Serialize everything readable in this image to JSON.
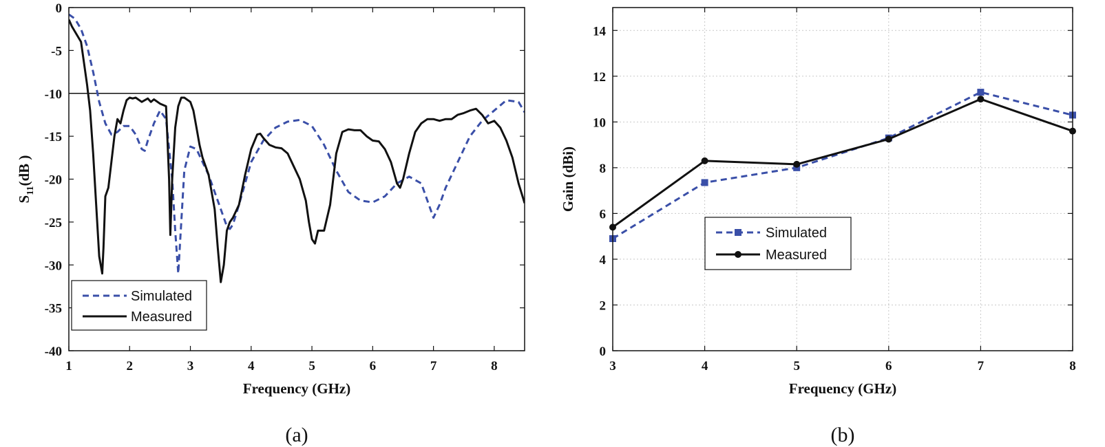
{
  "chart_data": [
    {
      "type": "line",
      "caption": "(a)",
      "xlabel": "Frequency (GHz)",
      "ylabel_main": "S",
      "ylabel_sub": "11",
      "ylabel_rest": "(dB )",
      "xlim": [
        1,
        8.5
      ],
      "ylim": [
        -40,
        0
      ],
      "xticks": [
        1,
        2,
        3,
        4,
        5,
        6,
        7,
        8
      ],
      "yticks": [
        0,
        -5,
        -10,
        -15,
        -20,
        -25,
        -30,
        -35,
        -40
      ],
      "grid": false,
      "reference_line": -10,
      "legend_position": "bottom-left",
      "series": [
        {
          "name": "Simulated",
          "style": "dashed",
          "color": "#3a4fa8",
          "x": [
            1.0,
            1.1,
            1.2,
            1.3,
            1.4,
            1.5,
            1.6,
            1.7,
            1.8,
            1.9,
            2.0,
            2.1,
            2.2,
            2.25,
            2.3,
            2.4,
            2.5,
            2.6,
            2.7,
            2.75,
            2.8,
            2.85,
            2.9,
            3.0,
            3.1,
            3.2,
            3.3,
            3.4,
            3.5,
            3.6,
            3.65,
            3.7,
            3.8,
            3.9,
            4.0,
            4.2,
            4.4,
            4.6,
            4.8,
            5.0,
            5.2,
            5.4,
            5.6,
            5.8,
            6.0,
            6.2,
            6.4,
            6.6,
            6.8,
            6.9,
            7.0,
            7.1,
            7.2,
            7.4,
            7.6,
            7.8,
            8.0,
            8.2,
            8.4,
            8.5
          ],
          "y": [
            -0.8,
            -1.3,
            -2.5,
            -4.5,
            -7.5,
            -11.0,
            -13.5,
            -14.8,
            -14.5,
            -13.8,
            -13.8,
            -14.8,
            -16.5,
            -16.7,
            -15.5,
            -13.5,
            -12.0,
            -13.0,
            -20.0,
            -26.0,
            -31.0,
            -25.0,
            -19.0,
            -16.2,
            -16.5,
            -18.0,
            -19.5,
            -21.5,
            -23.5,
            -25.5,
            -25.8,
            -25.3,
            -23.0,
            -20.5,
            -18.0,
            -15.5,
            -14.0,
            -13.3,
            -13.1,
            -13.8,
            -16.0,
            -19.0,
            -21.5,
            -22.5,
            -22.7,
            -22.0,
            -20.5,
            -19.7,
            -20.5,
            -22.5,
            -24.5,
            -23.0,
            -21.0,
            -18.0,
            -15.0,
            -13.2,
            -12.0,
            -10.8,
            -11.0,
            -12.2
          ]
        },
        {
          "name": "Measured",
          "style": "solid",
          "color": "#111111",
          "x": [
            1.0,
            1.05,
            1.1,
            1.2,
            1.25,
            1.3,
            1.35,
            1.4,
            1.45,
            1.5,
            1.55,
            1.57,
            1.6,
            1.65,
            1.7,
            1.75,
            1.8,
            1.85,
            1.9,
            1.95,
            2.0,
            2.05,
            2.1,
            2.2,
            2.3,
            2.35,
            2.4,
            2.5,
            2.6,
            2.65,
            2.67,
            2.7,
            2.75,
            2.8,
            2.85,
            2.9,
            3.0,
            3.05,
            3.1,
            3.15,
            3.2,
            3.3,
            3.4,
            3.45,
            3.5,
            3.55,
            3.6,
            3.65,
            3.7,
            3.8,
            3.9,
            4.0,
            4.1,
            4.15,
            4.2,
            4.3,
            4.4,
            4.5,
            4.6,
            4.7,
            4.8,
            4.9,
            4.95,
            5.0,
            5.05,
            5.1,
            5.2,
            5.3,
            5.4,
            5.5,
            5.6,
            5.7,
            5.8,
            5.9,
            6.0,
            6.1,
            6.2,
            6.3,
            6.4,
            6.45,
            6.5,
            6.6,
            6.7,
            6.8,
            6.9,
            7.0,
            7.1,
            7.2,
            7.3,
            7.4,
            7.5,
            7.6,
            7.7,
            7.8,
            7.9,
            8.0,
            8.1,
            8.2,
            8.3,
            8.4,
            8.5
          ],
          "y": [
            -1.4,
            -2.2,
            -2.8,
            -4.0,
            -6.5,
            -9.0,
            -12.0,
            -17.0,
            -23.0,
            -29.0,
            -31.0,
            -28.0,
            -22.0,
            -21.0,
            -18.0,
            -15.0,
            -13.0,
            -13.5,
            -12.0,
            -10.8,
            -10.5,
            -10.6,
            -10.5,
            -11.0,
            -10.6,
            -11.0,
            -10.7,
            -11.2,
            -11.5,
            -20.0,
            -26.5,
            -20.0,
            -14.0,
            -11.5,
            -10.5,
            -10.5,
            -11.0,
            -12.0,
            -14.0,
            -16.0,
            -17.5,
            -19.5,
            -23.5,
            -28.0,
            -32.0,
            -30.0,
            -26.0,
            -25.0,
            -24.5,
            -23.0,
            -19.5,
            -16.5,
            -14.8,
            -14.7,
            -15.2,
            -16.0,
            -16.3,
            -16.4,
            -17.0,
            -18.5,
            -20.0,
            -22.5,
            -25.0,
            -27.0,
            -27.5,
            -26.0,
            -26.0,
            -23.0,
            -17.0,
            -14.5,
            -14.2,
            -14.3,
            -14.3,
            -15.0,
            -15.5,
            -15.6,
            -16.5,
            -18.0,
            -20.5,
            -21.0,
            -20.0,
            -17.0,
            -14.5,
            -13.5,
            -13.0,
            -13.0,
            -13.2,
            -13.0,
            -13.0,
            -12.5,
            -12.3,
            -12.0,
            -11.8,
            -12.5,
            -13.5,
            -13.2,
            -14.0,
            -15.5,
            -17.5,
            -20.5,
            -22.8
          ]
        }
      ]
    },
    {
      "type": "line",
      "caption": "(b)",
      "xlabel": "Frequency (GHz)",
      "ylabel": "Gain (dBi)",
      "xlim": [
        3,
        8
      ],
      "ylim": [
        0,
        15
      ],
      "xticks": [
        3,
        4,
        5,
        6,
        7,
        8
      ],
      "yticks": [
        0,
        2,
        4,
        6,
        8,
        10,
        12,
        14
      ],
      "grid": true,
      "legend_position": "middle-left",
      "series": [
        {
          "name": "Simulated",
          "style": "dashed",
          "marker": "square",
          "color": "#3a4fa8",
          "x": [
            3,
            4,
            5,
            6,
            7,
            8
          ],
          "y": [
            4.9,
            7.35,
            8.0,
            9.3,
            11.3,
            10.3
          ]
        },
        {
          "name": "Measured",
          "style": "solid",
          "marker": "circle",
          "color": "#111111",
          "x": [
            3,
            4,
            5,
            6,
            7,
            8
          ],
          "y": [
            5.4,
            8.3,
            8.15,
            9.25,
            11.0,
            9.6
          ]
        }
      ]
    }
  ]
}
